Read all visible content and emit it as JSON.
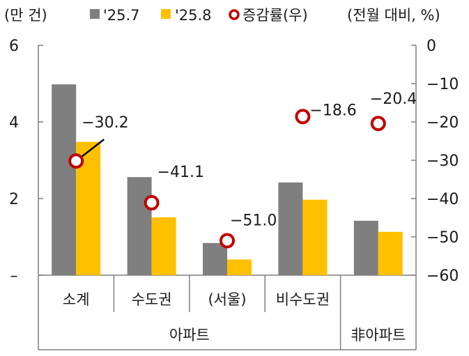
{
  "chart_data": {
    "type": "bar",
    "left_axis_unit": "(만 건)",
    "right_axis_unit": "(전월 대비, %)",
    "categories": [
      "소계",
      "수도권",
      "(서울)",
      "비수도권",
      ""
    ],
    "groups": [
      {
        "label": "아파트",
        "span": 4
      },
      {
        "label": "非아파트",
        "span": 1
      }
    ],
    "series": [
      {
        "name": "'25.7",
        "type": "bar",
        "axis": "left",
        "color": "#7f7f7f",
        "values": [
          4.98,
          2.56,
          0.84,
          2.42,
          1.42
        ]
      },
      {
        "name": "'25.8",
        "type": "bar",
        "axis": "left",
        "color": "#ffc000",
        "values": [
          3.48,
          1.51,
          0.41,
          1.97,
          1.13
        ]
      },
      {
        "name": "증감률(우)",
        "type": "scatter",
        "axis": "right",
        "color": "#c00000",
        "values": [
          -30.2,
          -41.1,
          -51.0,
          -18.6,
          -20.4
        ],
        "labels": [
          "−30.2",
          "−41.1",
          "−51.0",
          "−18.6",
          "−20.4"
        ]
      }
    ],
    "left_axis": {
      "min": 0,
      "max": 6,
      "ticks": [
        "–",
        "2",
        "4",
        "6"
      ]
    },
    "right_axis": {
      "min": -60,
      "max": 0,
      "ticks": [
        "0",
        "−10",
        "−20",
        "−30",
        "−40",
        "−50",
        "−60"
      ]
    },
    "grid": false,
    "legend": "top"
  }
}
